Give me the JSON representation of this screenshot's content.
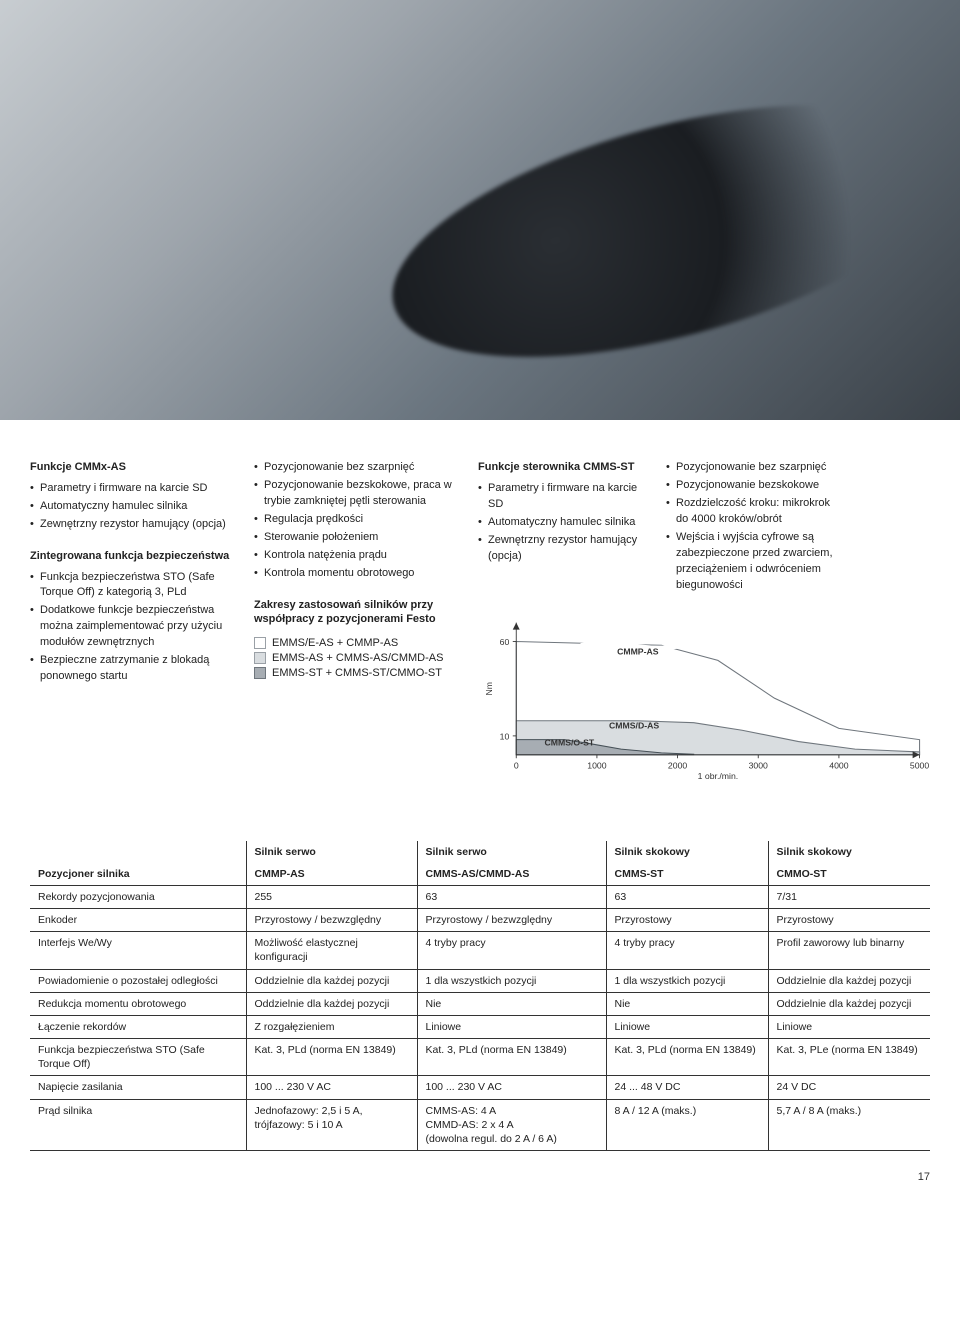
{
  "hero_image_alt": "Zbliżenie złącza przewodu na napędzie elektrycznym (zdjęcie produktowe)",
  "col1": {
    "h1": "Funkcje CMMx-AS",
    "b1": [
      "Parametry i firmware na karcie SD",
      "Automatyczny hamulec silnika",
      "Zewnętrzny rezystor hamujący (opcja)"
    ],
    "h2": "Zintegrowana funkcja bezpieczeństwa",
    "b2": [
      "Funkcja bezpieczeństwa STO (Safe Torque Off) z kategorią 3, PLd",
      "Dodatkowe funkcje bezpieczeństwa można zaimplementować przy użyciu modułów zewnętrznych",
      "Bezpieczne zatrzymanie z blokadą ponownego startu"
    ]
  },
  "col2": {
    "b1": [
      "Pozycjonowanie bez szarpnięć",
      "Pozycjonowanie bezskokowe, praca w trybie zamkniętej pętli sterowania",
      "Regulacja prędkości",
      "Sterowanie położeniem",
      "Kontrola natężenia prądu",
      "Kontrola momentu obrotowego"
    ],
    "h2": "Zakresy zastosowań silników przy współpracy z pozycjonerami Festo",
    "legend": [
      {
        "label": "EMMS/E-AS + CMMP-AS",
        "fill": "#ffffff",
        "border": "#9aa0a6"
      },
      {
        "label": "EMMS-AS + CMMS-AS/CMMD-AS",
        "fill": "#d9dde0",
        "border": "#9aa0a6"
      },
      {
        "label": "EMMS-ST + CMMS-ST/CMMO-ST",
        "fill": "#a7adb3",
        "border": "#6f767d"
      }
    ]
  },
  "col3": {
    "h1": "Funkcje sterownika CMMS-ST",
    "b1": [
      "Parametry i firmware na karcie SD",
      "Automatyczny hamulec silnika",
      "Zewnętrzny rezystor hamujący (opcja)"
    ],
    "b2": [
      "Pozycjonowanie bez szarpnięć",
      "Pozycjonowanie bezskokowe",
      "Rozdzielczość kroku: mikrokrok do 4000 kroków/obrót",
      "Wejścia i wyjścia cyfrowe są zabezpieczone przed zwarciem, przeciążeniem i odwróceniem biegunowości"
    ]
  },
  "chart": {
    "y_axis_label": "Nm",
    "y_ticks": [
      10,
      60
    ],
    "x_ticks": [
      0,
      1000,
      2000,
      3000,
      4000,
      5000
    ],
    "x_axis_label": "1 obr./min.",
    "xlim": [
      0,
      5000
    ],
    "ylim": [
      0,
      70
    ],
    "series": [
      {
        "name": "CMMP-AS",
        "fill": "#ffffff",
        "stroke": "#6f767d",
        "label_pos": {
          "x": 1250,
          "y": 53
        }
      },
      {
        "name": "CMMS/D-AS",
        "fill": "#d9dde0",
        "stroke": "#6f767d",
        "label_pos": {
          "x": 1150,
          "y": 14
        }
      },
      {
        "name": "CMMS/O-ST",
        "fill": "#a7adb3",
        "stroke": "#465057",
        "label_pos": {
          "x": 350,
          "y": 5
        }
      }
    ],
    "curves": {
      "cmmp": [
        [
          0,
          60
        ],
        [
          1800,
          58
        ],
        [
          2500,
          50
        ],
        [
          3200,
          30
        ],
        [
          4000,
          14
        ],
        [
          5000,
          8
        ]
      ],
      "cmmsd": [
        [
          0,
          18
        ],
        [
          1500,
          18
        ],
        [
          2200,
          17
        ],
        [
          2800,
          13
        ],
        [
          3500,
          7
        ],
        [
          4200,
          3
        ],
        [
          5000,
          1.5
        ]
      ],
      "cmmso": [
        [
          0,
          8
        ],
        [
          600,
          8
        ],
        [
          900,
          6
        ],
        [
          1300,
          3
        ],
        [
          1800,
          1
        ],
        [
          2200,
          0.3
        ]
      ]
    },
    "background": "#ffffff",
    "grid_color": "#b9bfc4",
    "axis_color": "#333333"
  },
  "table": {
    "header_row1": [
      "",
      "Silnik serwo",
      "Silnik serwo",
      "Silnik skokowy",
      "Silnik skokowy"
    ],
    "header_row2": [
      "Pozycjoner silnika",
      "CMMP-AS",
      "CMMS-AS/CMMD-AS",
      "CMMS-ST",
      "CMMO-ST"
    ],
    "rows": [
      [
        "Rekordy pozycjonowania",
        "255",
        "63",
        "63",
        "7/31"
      ],
      [
        "Enkoder",
        "Przyrostowy / bezwzględny",
        "Przyrostowy / bezwzględny",
        "Przyrostowy",
        "Przyrostowy"
      ],
      [
        "Interfejs We/Wy",
        "Możliwość elastycznej konfiguracji",
        "4 tryby pracy",
        "4 tryby pracy",
        "Profil zaworowy lub binarny"
      ],
      [
        "Powiadomienie o pozostałej odległości",
        "Oddzielnie dla każdej pozycji",
        "1 dla wszystkich pozycji",
        "1 dla wszystkich pozycji",
        "Oddzielnie dla każdej pozycji"
      ],
      [
        "Redukcja momentu obrotowego",
        "Oddzielnie dla każdej pozycji",
        "Nie",
        "Nie",
        "Oddzielnie dla każdej pozycji"
      ],
      [
        "Łączenie rekordów",
        "Z rozgałęzieniem",
        "Liniowe",
        "Liniowe",
        "Liniowe"
      ],
      [
        "Funkcja bezpieczeństwa STO (Safe Torque Off)",
        "Kat. 3, PLd (norma EN 13849)",
        "Kat. 3, PLd (norma EN 13849)",
        "Kat. 3, PLd (norma EN 13849)",
        "Kat. 3, PLe (norma EN 13849)"
      ],
      [
        "Napięcie zasilania",
        "100 ... 230 V AC",
        "100 ... 230 V AC",
        "24 ... 48 V DC",
        "24 V DC"
      ],
      [
        "Prąd silnika",
        "Jednofazowy: 2,5 i 5 A, trójfazowy: 5 i 10 A",
        "CMMS-AS: 4 A\nCMMD-AS: 2 x 4 A\n(dowolna regul. do 2 A / 6 A)",
        "8 A / 12 A (maks.)",
        "5,7 A / 8 A (maks.)"
      ]
    ]
  },
  "page_number": "17"
}
